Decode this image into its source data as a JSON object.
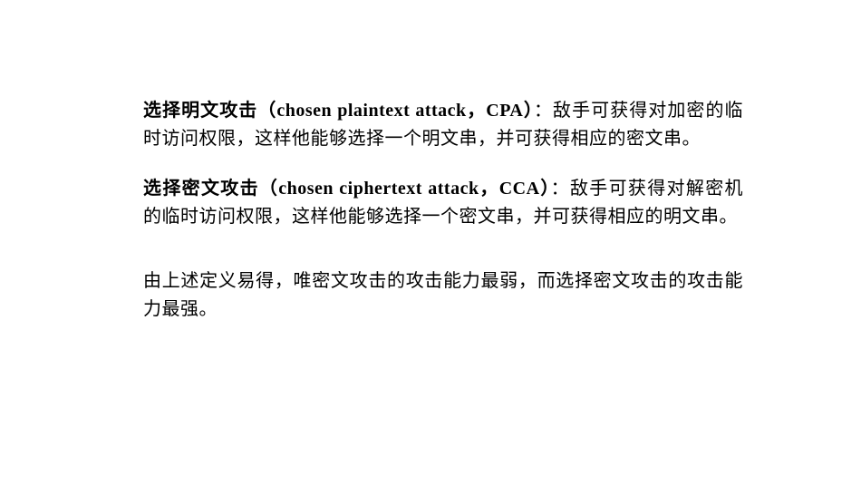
{
  "paragraphs": {
    "p1": {
      "bold_zh": "选择明文攻击",
      "bold_en_open": "（chosen  plaintext  attack，CPA）",
      "body": "：敌手可获得对加密的临时访问权限，这样他能够选择一个明文串，并可获得相应的密文串。"
    },
    "p2": {
      "bold_zh": "选择密文攻击",
      "bold_en_open": "（chosen  ciphertext  attack，CCA）",
      "body": "：敌手可获得对解密机的临时访问权限，这样他能够选择一个密文串，并可获得相应的明文串。"
    },
    "p3": {
      "body": "由上述定义易得，唯密文攻击的攻击能力最弱，而选择密文攻击的攻击能力最强。"
    }
  },
  "styling": {
    "background_color": "#ffffff",
    "text_color": "#000000",
    "font_size": 20,
    "line_height": 1.55,
    "body_font": "SimSun",
    "bold_font": "SimHei"
  }
}
